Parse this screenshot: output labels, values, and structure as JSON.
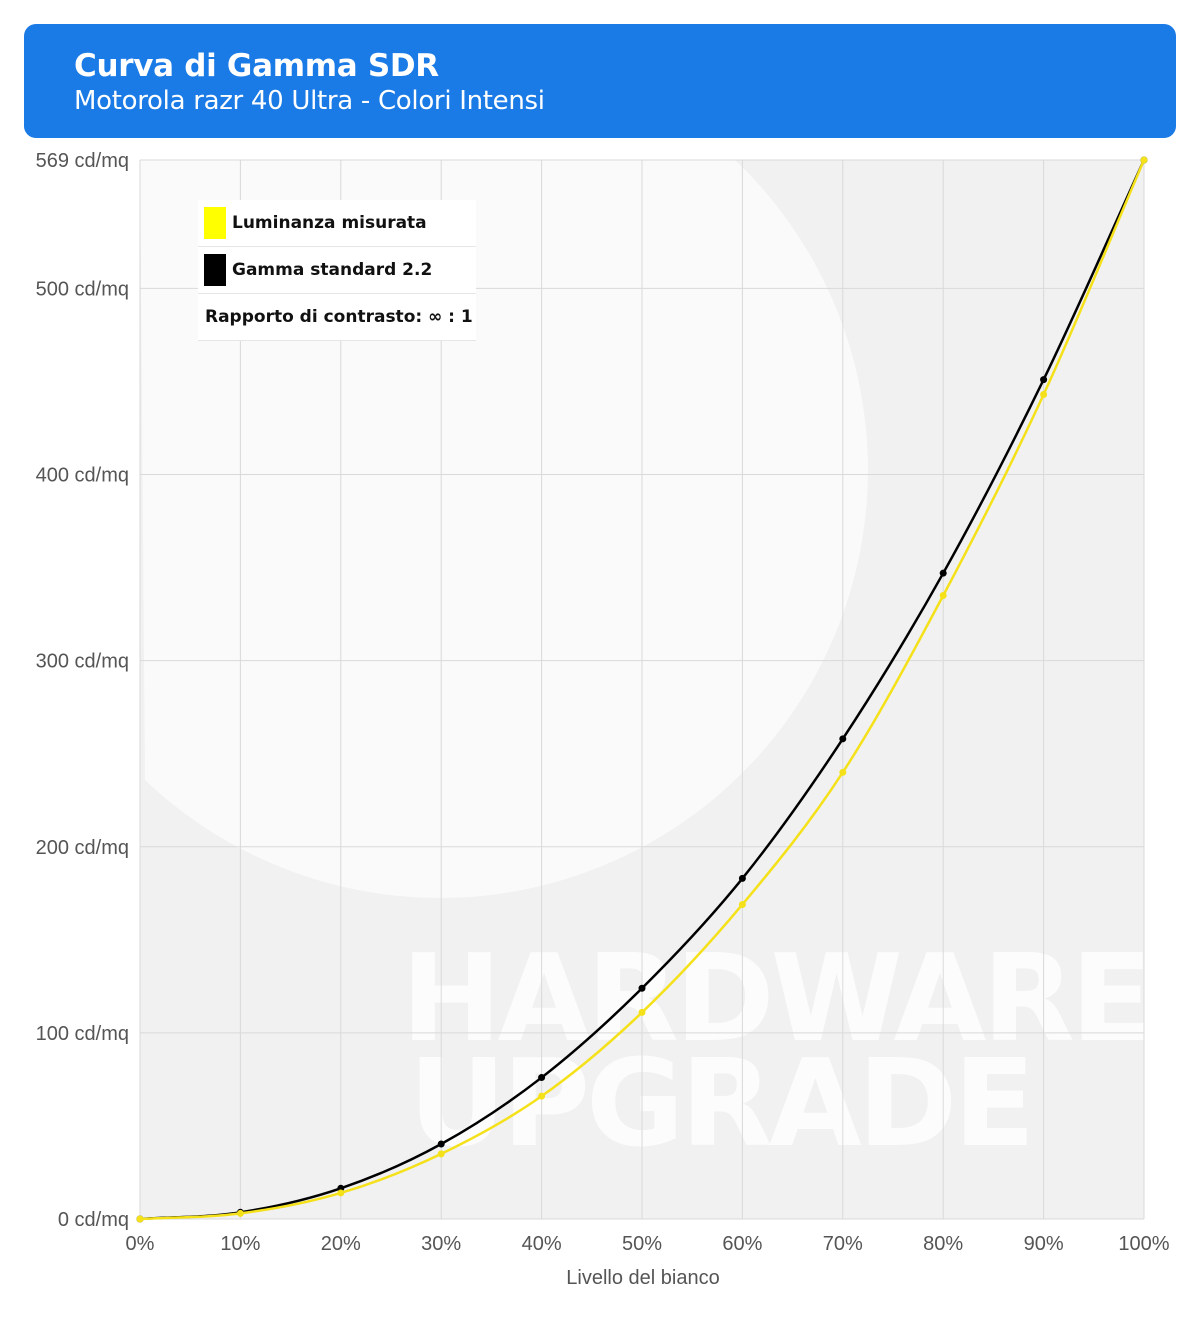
{
  "header": {
    "title": "Curva di Gamma SDR",
    "subtitle": "Motorola razr 40 Ultra - Colori Intensi",
    "background": "#1a7ae6"
  },
  "legend": {
    "items": [
      {
        "label": "Luminanza misurata",
        "color": "#ffff00"
      },
      {
        "label": "Gamma standard 2.2",
        "color": "#000000"
      }
    ],
    "contrast_note": "Rapporto di contrasto: ∞ : 1"
  },
  "watermark": [
    "HARDWARE",
    "UPGRADE"
  ],
  "chart_data": {
    "type": "line",
    "xlabel": "Livello del bianco",
    "ylabel": "",
    "x": [
      0,
      10,
      20,
      30,
      40,
      50,
      60,
      70,
      80,
      90,
      100
    ],
    "x_tick_labels": [
      "0%",
      "10%",
      "20%",
      "30%",
      "40%",
      "50%",
      "60%",
      "70%",
      "80%",
      "90%",
      "100%"
    ],
    "xlim": [
      0,
      100
    ],
    "y_ticks": [
      0,
      100,
      200,
      300,
      400,
      500,
      569
    ],
    "y_tick_labels": [
      "0 cd/mq",
      "100 cd/mq",
      "200 cd/mq",
      "300 cd/mq",
      "400 cd/mq",
      "500 cd/mq",
      "569 cd/mq"
    ],
    "ylim": [
      0,
      569
    ],
    "grid": true,
    "legend_position": "top-left",
    "series": [
      {
        "name": "Luminanza misurata",
        "color": "#f5e11a",
        "values": [
          0,
          3,
          14,
          35,
          66,
          111,
          169,
          240,
          335,
          443,
          569
        ]
      },
      {
        "name": "Gamma standard 2.2",
        "color": "#000000",
        "values": [
          0,
          3.6,
          16.5,
          40.3,
          76,
          124,
          183,
          258,
          347,
          451,
          569
        ]
      }
    ]
  }
}
